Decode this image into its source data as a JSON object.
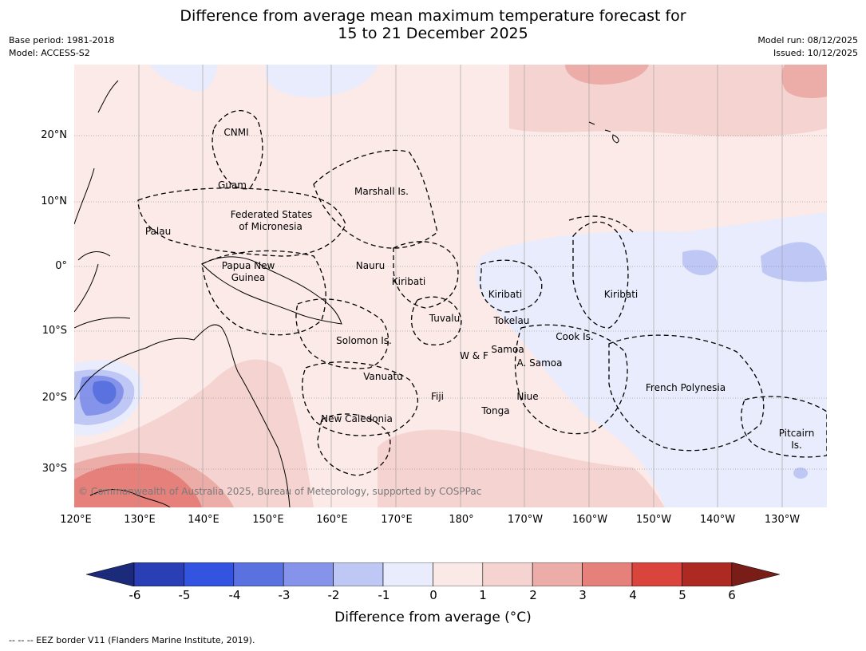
{
  "header": {
    "title_line1": "Difference from average mean maximum temperature forecast for",
    "title_line2": "15 to 21 December 2025",
    "base_period": "Base period: 1981-2018",
    "model": "Model: ACCESS-S2",
    "model_run": "Model run: 08/12/2025",
    "issued": "Issued: 10/12/2025"
  },
  "map": {
    "lat_labels": [
      "20°N",
      "10°N",
      "0°",
      "10°S",
      "20°S",
      "30°S"
    ],
    "lon_labels": [
      "120°E",
      "130°E",
      "140°E",
      "150°E",
      "160°E",
      "170°E",
      "180°",
      "170°W",
      "160°W",
      "150°W",
      "140°W",
      "130°W"
    ],
    "regions": [
      "CNMI",
      "Guam",
      "Marshall Is.",
      "Palau",
      "Federated States",
      "of Micronesia",
      "Papua New",
      "Guinea",
      "Nauru",
      "Kiribati",
      "Kiribati",
      "Kiribati",
      "Tokelau",
      "Tuvalu",
      "Solomon Is.",
      "Cook Is.",
      "Samoa",
      "W & F",
      "A. Samoa",
      "Vanuatu",
      "Fiji",
      "Niue",
      "Tonga",
      "French Polynesia",
      "New Caledonia",
      "Pitcairn",
      "Is."
    ],
    "copyright": "© Commonwealth of Australia 2025, Bureau of Meteorology, supported by COSPPac"
  },
  "colorbar": {
    "ticks": [
      "-6",
      "-5",
      "-4",
      "-3",
      "-2",
      "-1",
      "0",
      "1",
      "2",
      "3",
      "4",
      "5",
      "6"
    ],
    "colors": [
      "#1c2a7c",
      "#2a3fb5",
      "#3354e0",
      "#5a71e0",
      "#8594ea",
      "#bfc8f4",
      "#e8ecfc",
      "#fbe9e8",
      "#f4d3d0",
      "#ecaca8",
      "#e5807a",
      "#d9453c",
      "#ad2a22",
      "#7a1c18"
    ],
    "label": "Difference from average (°C)"
  },
  "footer": {
    "legend": "--  --  -- EEZ border V11 (Flanders Marine Institute, 2019)."
  }
}
